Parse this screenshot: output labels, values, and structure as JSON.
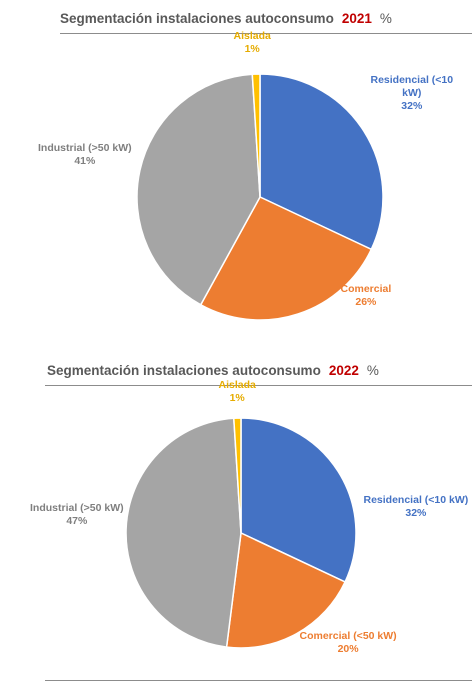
{
  "chart_data": [
    {
      "type": "pie",
      "title": "Segmentación instalaciones autoconsumo",
      "year": "2021",
      "unit": "%",
      "slices": [
        {
          "label": "Residencial (<10 kW)",
          "label_lines": [
            "Residencial (<10",
            "kW)"
          ],
          "value": 32,
          "value_label": "32%",
          "color": "#4472c4"
        },
        {
          "label": "Comercial",
          "label_lines": [
            "Comercial"
          ],
          "value": 26,
          "value_label": "26%",
          "color": "#ed7d31"
        },
        {
          "label": "Industrial (>50 kW)",
          "label_lines": [
            "Industrial (>50 kW)"
          ],
          "value": 41,
          "value_label": "41%",
          "color": "#a5a5a5"
        },
        {
          "label": "Aislada",
          "label_lines": [
            "Aislada"
          ],
          "value": 1,
          "value_label": "1%",
          "color": "#ffc000"
        }
      ]
    },
    {
      "type": "pie",
      "title": "Segmentación instalaciones autoconsumo",
      "year": "2022",
      "unit": "%",
      "slices": [
        {
          "label": "Residencial (<10 kW)",
          "label_lines": [
            "Residencial (<10 kW)"
          ],
          "value": 32,
          "value_label": "32%",
          "color": "#4472c4"
        },
        {
          "label": "Comercial (<50 kW)",
          "label_lines": [
            "Comercial (<50 kW)"
          ],
          "value": 20,
          "value_label": "20%",
          "color": "#ed7d31"
        },
        {
          "label": "Industrial (>50 kW)",
          "label_lines": [
            "Industrial (>50 kW)"
          ],
          "value": 47,
          "value_label": "47%",
          "color": "#a5a5a5"
        },
        {
          "label": "Aislada",
          "label_lines": [
            "Aislada"
          ],
          "value": 1,
          "value_label": "1%",
          "color": "#ffc000"
        }
      ]
    }
  ]
}
